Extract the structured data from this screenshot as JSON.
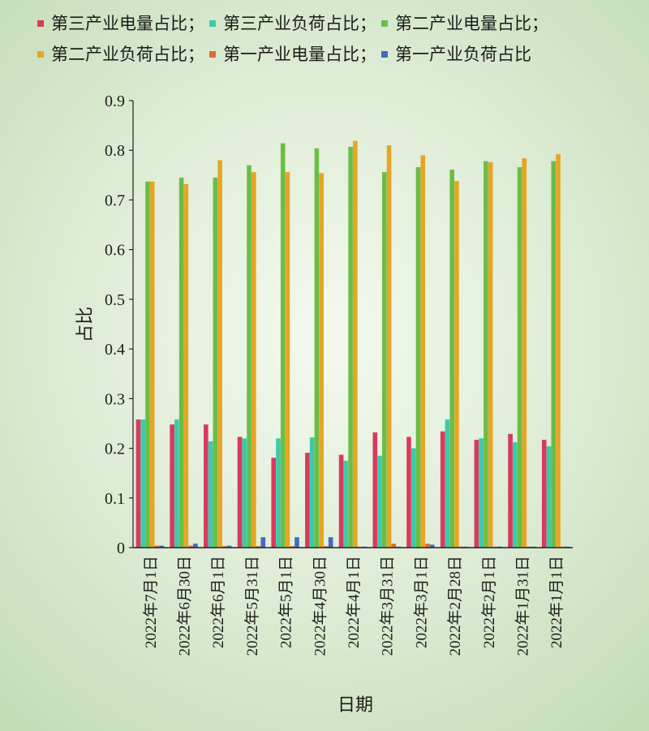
{
  "chart_data": {
    "type": "bar",
    "xlabel": "日期",
    "ylabel": "占比",
    "ylim": [
      0,
      0.9
    ],
    "yticks": [
      "0",
      "0.1",
      "0.2",
      "0.3",
      "0.4",
      "0.5",
      "0.6",
      "0.7",
      "0.8",
      "0.9"
    ],
    "categories": [
      "2022年7月1日",
      "2022年6月30日",
      "2022年6月1日",
      "2022年5月31日",
      "2022年5月1日",
      "2022年4月30日",
      "2022年4月1日",
      "2022年3月31日",
      "2022年3月1日",
      "2022年2月28日",
      "2022年2月1日",
      "2022年1月31日",
      "2022年1月1日"
    ],
    "series": [
      {
        "name": "第三产业电量占比；",
        "color": "#d83a5e",
        "values": [
          0.258,
          0.248,
          0.248,
          0.223,
          0.181,
          0.191,
          0.187,
          0.232,
          0.223,
          0.234,
          0.217,
          0.229,
          0.217
        ]
      },
      {
        "name": "第三产业负荷占比；",
        "color": "#3ec9aa",
        "values": [
          0.258,
          0.258,
          0.214,
          0.22,
          0.22,
          0.222,
          0.175,
          0.185,
          0.2,
          0.258,
          0.22,
          0.212,
          0.204
        ]
      },
      {
        "name": "第二产业电量占比；",
        "color": "#6abe45",
        "values": [
          0.737,
          0.745,
          0.745,
          0.77,
          0.814,
          0.804,
          0.807,
          0.756,
          0.766,
          0.761,
          0.778,
          0.766,
          0.778
        ]
      },
      {
        "name": "第二产业负荷占比；",
        "color": "#e6a526",
        "values": [
          0.737,
          0.732,
          0.78,
          0.756,
          0.756,
          0.754,
          0.819,
          0.81,
          0.79,
          0.738,
          0.776,
          0.784,
          0.792
        ]
      },
      {
        "name": "第一产业电量占比；",
        "color": "#e06a2e",
        "values": [
          0.004,
          0.004,
          0.003,
          0.003,
          0.003,
          0.003,
          0.002,
          0.008,
          0.008,
          0.002,
          0.002,
          0.002,
          0.002
        ]
      },
      {
        "name": "第一产业负荷占比",
        "color": "#3e6cc2",
        "values": [
          0.004,
          0.008,
          0.004,
          0.021,
          0.021,
          0.021,
          0.002,
          0.002,
          0.006,
          0.002,
          0.002,
          0.002,
          0.002
        ]
      }
    ]
  }
}
